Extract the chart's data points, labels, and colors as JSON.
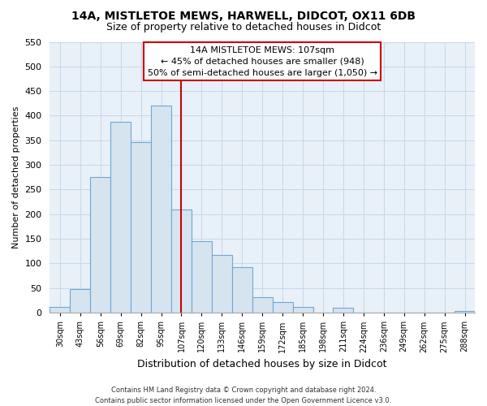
{
  "title": "14A, MISTLETOE MEWS, HARWELL, DIDCOT, OX11 6DB",
  "subtitle": "Size of property relative to detached houses in Didcot",
  "xlabel": "Distribution of detached houses by size in Didcot",
  "ylabel": "Number of detached properties",
  "categories": [
    "30sqm",
    "43sqm",
    "56sqm",
    "69sqm",
    "82sqm",
    "95sqm",
    "107sqm",
    "120sqm",
    "133sqm",
    "146sqm",
    "159sqm",
    "172sqm",
    "185sqm",
    "198sqm",
    "211sqm",
    "224sqm",
    "236sqm",
    "249sqm",
    "262sqm",
    "275sqm",
    "288sqm"
  ],
  "values": [
    12,
    48,
    275,
    387,
    347,
    420,
    210,
    145,
    118,
    92,
    31,
    22,
    12,
    0,
    10,
    0,
    0,
    0,
    0,
    0,
    3
  ],
  "bar_fill_color": "#d6e4f0",
  "bar_edge_color": "#6fa8d0",
  "redline_index": 6,
  "redline_color": "#cc0000",
  "annotation_title": "14A MISTLETOE MEWS: 107sqm",
  "annotation_line1": "← 45% of detached houses are smaller (948)",
  "annotation_line2": "50% of semi-detached houses are larger (1,050) →",
  "box_facecolor": "#ffffff",
  "box_edgecolor": "#cc0000",
  "ylim": [
    0,
    550
  ],
  "yticks": [
    0,
    50,
    100,
    150,
    200,
    250,
    300,
    350,
    400,
    450,
    500,
    550
  ],
  "grid_color": "#c8d8e8",
  "bg_color": "#e8f0f8",
  "plot_bg_color": "#e8f0f8",
  "footer1": "Contains HM Land Registry data © Crown copyright and database right 2024.",
  "footer2": "Contains public sector information licensed under the Open Government Licence v3.0."
}
